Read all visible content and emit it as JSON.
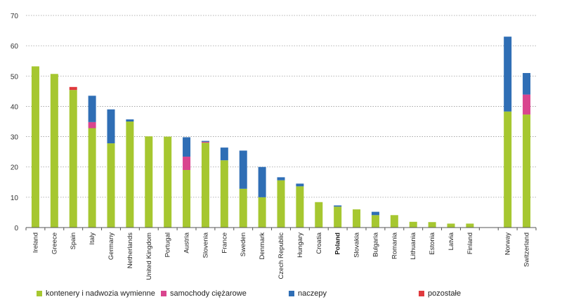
{
  "chart_data": {
    "type": "bar",
    "stacked": true,
    "title": "",
    "xlabel": "",
    "ylabel": "",
    "ylim": [
      0,
      70
    ],
    "yticks": [
      0,
      10,
      20,
      30,
      40,
      50,
      60,
      70
    ],
    "grid": "horizontal dotted",
    "legend_position": "bottom",
    "highlight_category": "Poland",
    "categories": [
      "Ireland",
      "Greece",
      "Spain",
      "Italy",
      "Germany",
      "Netherlands",
      "United Kingdom",
      "Portugal",
      "Austria",
      "Slovenia",
      "France",
      "Sweden",
      "Denmark",
      "Czech Republic",
      "Hungary",
      "Croatia",
      "Poland",
      "Slovakia",
      "Bulgaria",
      "Romania",
      "Lithuania",
      "Estonia",
      "Latvia",
      "Finland",
      "",
      "Norway",
      "Switzerland"
    ],
    "series": [
      {
        "name": "kontenery i nadwozia wymienne",
        "color": "#a6c730",
        "values": [
          53.2,
          50.7,
          45.4,
          32.8,
          27.8,
          35.0,
          30.1,
          30.0,
          19.0,
          28.0,
          22.2,
          12.8,
          10.0,
          15.6,
          13.6,
          8.4,
          6.9,
          6.0,
          4.1,
          4.1,
          1.9,
          1.8,
          1.3,
          1.3,
          0,
          38.3,
          37.3
        ]
      },
      {
        "name": "samochody ciężarowe",
        "color": "#d9458e",
        "values": [
          0,
          0,
          0,
          2.0,
          0,
          0,
          0,
          0,
          4.4,
          0.3,
          0,
          0,
          0,
          0,
          0,
          0,
          0,
          0,
          0,
          0,
          0,
          0,
          0,
          0,
          0,
          0,
          6.6
        ]
      },
      {
        "name": "naczepy",
        "color": "#2f6eb5",
        "values": [
          0,
          0,
          0,
          8.7,
          11.2,
          0.7,
          0,
          0,
          6.4,
          0.3,
          4.2,
          12.6,
          10.0,
          1.0,
          0.9,
          0,
          0.4,
          0,
          1.1,
          0,
          0,
          0,
          0,
          0,
          0,
          24.7,
          7.1
        ]
      },
      {
        "name": "pozostałe",
        "color": "#e03a3e",
        "values": [
          0,
          0,
          1.0,
          0,
          0,
          0,
          0,
          0,
          0,
          0,
          0,
          0,
          0,
          0,
          0,
          0,
          0,
          0,
          0,
          0,
          0,
          0,
          0,
          0,
          0,
          0,
          0
        ]
      }
    ]
  }
}
